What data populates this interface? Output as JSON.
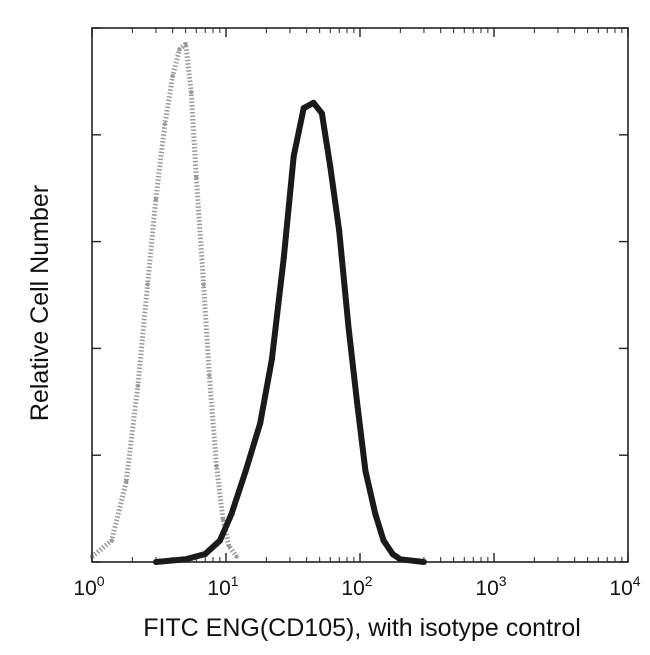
{
  "chart_data": {
    "type": "line",
    "title": "",
    "xlabel": "FITC ENG(CD105), with isotype control",
    "ylabel": "Relative Cell Number",
    "xscale": "log",
    "xlim": [
      1,
      10000
    ],
    "ylim": [
      0,
      100
    ],
    "grid": false,
    "x_ticks": [
      {
        "value": 1,
        "base": "10",
        "exp": "0"
      },
      {
        "value": 10,
        "base": "10",
        "exp": "1"
      },
      {
        "value": 100,
        "base": "10",
        "exp": "2"
      },
      {
        "value": 1000,
        "base": "10",
        "exp": "3"
      },
      {
        "value": 10000,
        "base": "10",
        "exp": "4"
      }
    ],
    "y_ticks": [
      0,
      20,
      40,
      60,
      80,
      100
    ],
    "series": [
      {
        "color": "#9a9a9a",
        "style": "dotted",
        "x": [
          1,
          1.4,
          1.8,
          2.2,
          2.6,
          3.0,
          3.5,
          4.0,
          4.5,
          5.0,
          5.5,
          6.0,
          6.8,
          7.5,
          8.5,
          9.5,
          10.5,
          12
        ],
        "y": [
          1,
          4,
          15,
          33,
          52,
          68,
          82,
          91,
          96,
          97,
          88,
          72,
          52,
          35,
          18,
          8,
          3,
          1
        ]
      },
      {
        "color": "#1a1a1a",
        "style": "solid",
        "x": [
          3,
          5,
          7,
          9,
          11,
          14,
          18,
          22,
          27,
          32,
          38,
          45,
          52,
          60,
          70,
          82,
          95,
          110,
          130,
          150,
          175,
          200,
          300
        ],
        "y": [
          0,
          0.5,
          1.5,
          4,
          9,
          17,
          26,
          38,
          57,
          76,
          85,
          86,
          84,
          74,
          62,
          44,
          30,
          17,
          9,
          4,
          1.5,
          0.5,
          0
        ]
      }
    ]
  }
}
